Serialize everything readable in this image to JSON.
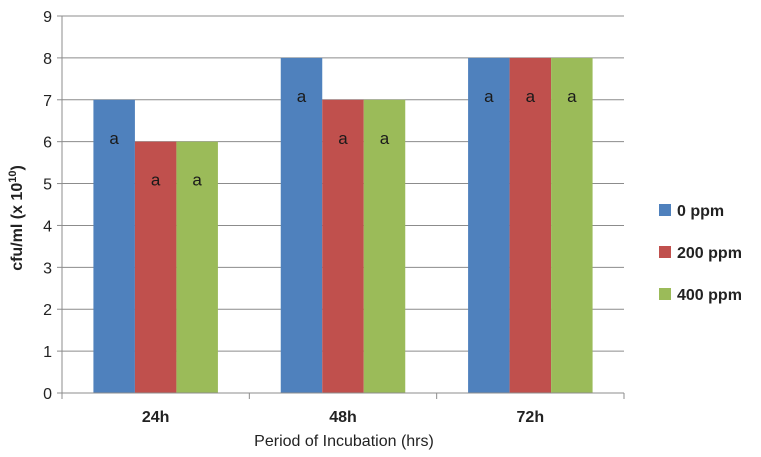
{
  "chart_data": {
    "type": "bar",
    "categories": [
      "24h",
      "48h",
      "72h"
    ],
    "series": [
      {
        "name": "0 ppm",
        "color": "#4F81BD",
        "values": [
          7,
          8,
          8
        ],
        "labels": [
          "a",
          "a",
          "a"
        ]
      },
      {
        "name": "200 ppm",
        "color": "#C0504D",
        "values": [
          6,
          7,
          8
        ],
        "labels": [
          "a",
          "a",
          "a"
        ]
      },
      {
        "name": "400 ppm",
        "color": "#9BBB59",
        "values": [
          6,
          7,
          8
        ],
        "labels": [
          "a",
          "a",
          "a"
        ]
      }
    ],
    "xlabel": "Period of Incubation (hrs)",
    "ylabel": "cfu/ml (x 10",
    "ylabel_superscript": "10",
    "ylabel_suffix": ")",
    "ylim": [
      0,
      9
    ],
    "yticks": [
      "0",
      "1",
      "2",
      "3",
      "4",
      "5",
      "6",
      "7",
      "8",
      "9"
    ],
    "grid": true,
    "legend_position": "right"
  }
}
